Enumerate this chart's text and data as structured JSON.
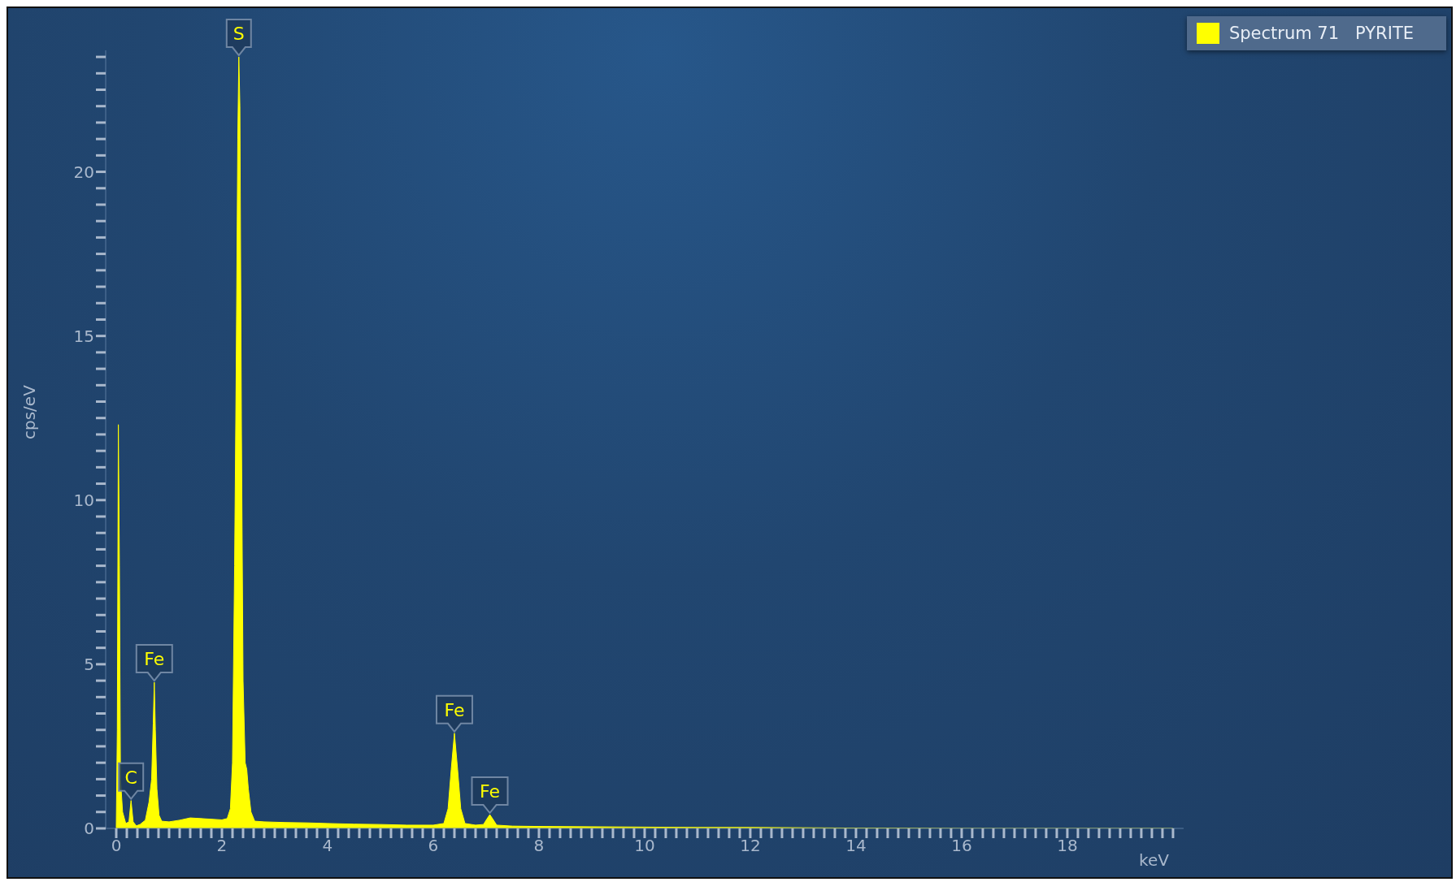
{
  "chart_data": {
    "type": "area",
    "xlabel": "keV",
    "ylabel": "cps/eV",
    "legend": "top right",
    "grid": false,
    "marker": "none",
    "xlim": [
      -0.2,
      20.2
    ],
    "ylim": [
      0,
      23.7
    ],
    "xticks": [
      0,
      {
        "value": 0.2,
        "label": null
      },
      {
        "value": 0.4,
        "label": null
      },
      {
        "value": 0.6,
        "label": null
      },
      {
        "value": 0.8,
        "label": null
      },
      {
        "value": 1,
        "label": null
      },
      {
        "value": 1.2,
        "label": null
      },
      {
        "value": 1.4,
        "label": null
      },
      {
        "value": 1.6,
        "label": null
      },
      {
        "value": 1.8,
        "label": null
      },
      2,
      {
        "value": 2.2,
        "label": null
      },
      {
        "value": 2.4,
        "label": null
      },
      {
        "value": 2.6,
        "label": null
      },
      {
        "value": 2.8,
        "label": null
      },
      {
        "value": 3,
        "label": null
      },
      {
        "value": 3.2,
        "label": null
      },
      {
        "value": 3.4,
        "label": null
      },
      {
        "value": 3.6,
        "label": null
      },
      {
        "value": 3.8,
        "label": null
      },
      4,
      {
        "value": 4.2,
        "label": null
      },
      {
        "value": 4.4,
        "label": null
      },
      {
        "value": 4.6,
        "label": null
      },
      {
        "value": 4.8,
        "label": null
      },
      {
        "value": 5,
        "label": null
      },
      {
        "value": 5.2,
        "label": null
      },
      {
        "value": 5.4,
        "label": null
      },
      {
        "value": 5.6,
        "label": null
      },
      {
        "value": 5.8,
        "label": null
      },
      6,
      {
        "value": 6.2,
        "label": null
      },
      {
        "value": 6.4,
        "label": null
      },
      {
        "value": 6.6,
        "label": null
      },
      {
        "value": 6.8,
        "label": null
      },
      {
        "value": 7,
        "label": null
      },
      {
        "value": 7.2,
        "label": null
      },
      {
        "value": 7.4,
        "label": null
      },
      {
        "value": 7.6,
        "label": null
      },
      {
        "value": 7.8,
        "label": null
      },
      8,
      {
        "value": 8.2,
        "label": null
      },
      {
        "value": 8.4,
        "label": null
      },
      {
        "value": 8.6,
        "label": null
      },
      {
        "value": 8.8,
        "label": null
      },
      {
        "value": 9,
        "label": null
      },
      {
        "value": 9.2,
        "label": null
      },
      {
        "value": 9.4,
        "label": null
      },
      {
        "value": 9.6,
        "label": null
      },
      {
        "value": 9.8,
        "label": null
      },
      10,
      {
        "value": 10.2,
        "label": null
      },
      {
        "value": 10.4,
        "label": null
      },
      {
        "value": 10.6,
        "label": null
      },
      {
        "value": 10.8,
        "label": null
      },
      {
        "value": 11,
        "label": null
      },
      {
        "value": 11.2,
        "label": null
      },
      {
        "value": 11.4,
        "label": null
      },
      {
        "value": 11.6,
        "label": null
      },
      {
        "value": 11.8,
        "label": null
      },
      12,
      {
        "value": 12.2,
        "label": null
      },
      {
        "value": 12.4,
        "label": null
      },
      {
        "value": 12.6,
        "label": null
      },
      {
        "value": 12.8,
        "label": null
      },
      {
        "value": 13,
        "label": null
      },
      {
        "value": 13.2,
        "label": null
      },
      {
        "value": 13.4,
        "label": null
      },
      {
        "value": 13.6,
        "label": null
      },
      {
        "value": 13.8,
        "label": null
      },
      14,
      {
        "value": 14.2,
        "label": null
      },
      {
        "value": 14.4,
        "label": null
      },
      {
        "value": 14.6,
        "label": null
      },
      {
        "value": 14.8,
        "label": null
      },
      {
        "value": 15,
        "label": null
      },
      {
        "value": 15.2,
        "label": null
      },
      {
        "value": 15.4,
        "label": null
      },
      {
        "value": 15.6,
        "label": null
      },
      {
        "value": 15.8,
        "label": null
      },
      16,
      {
        "value": 16.2,
        "label": null
      },
      {
        "value": 16.4,
        "label": null
      },
      {
        "value": 16.6,
        "label": null
      },
      {
        "value": 16.8,
        "label": null
      },
      {
        "value": 17,
        "label": null
      },
      {
        "value": 17.2,
        "label": null
      },
      {
        "value": 17.4,
        "label": null
      },
      {
        "value": 17.6,
        "label": null
      },
      {
        "value": 17.8,
        "label": null
      },
      18,
      {
        "value": 18.2,
        "label": null
      },
      {
        "value": 18.4,
        "label": null
      },
      {
        "value": 18.6,
        "label": null
      },
      {
        "value": 18.8,
        "label": null
      },
      {
        "value": 19,
        "label": null
      },
      {
        "value": 19.2,
        "label": null
      },
      {
        "value": 19.4,
        "label": null
      },
      {
        "value": 19.6,
        "label": null
      },
      {
        "value": 19.8,
        "label": null
      },
      {
        "value": 20,
        "label": null
      }
    ],
    "yticks": [
      0,
      {
        "value": 0.5,
        "label": null
      },
      {
        "value": 1,
        "label": null
      },
      {
        "value": 1.5,
        "label": null
      },
      {
        "value": 2,
        "label": null
      },
      {
        "value": 2.5,
        "label": null
      },
      {
        "value": 3,
        "label": null
      },
      {
        "value": 3.5,
        "label": null
      },
      {
        "value": 4,
        "label": null
      },
      {
        "value": 4.5,
        "label": null
      },
      5,
      {
        "value": 5.5,
        "label": null
      },
      {
        "value": 6,
        "label": null
      },
      {
        "value": 6.5,
        "label": null
      },
      {
        "value": 7,
        "label": null
      },
      {
        "value": 7.5,
        "label": null
      },
      {
        "value": 8,
        "label": null
      },
      {
        "value": 8.5,
        "label": null
      },
      {
        "value": 9,
        "label": null
      },
      {
        "value": 9.5,
        "label": null
      },
      10,
      {
        "value": 10.5,
        "label": null
      },
      {
        "value": 11,
        "label": null
      },
      {
        "value": 11.5,
        "label": null
      },
      {
        "value": 12,
        "label": null
      },
      {
        "value": 12.5,
        "label": null
      },
      {
        "value": 13,
        "label": null
      },
      {
        "value": 13.5,
        "label": null
      },
      {
        "value": 14,
        "label": null
      },
      {
        "value": 14.5,
        "label": null
      },
      15,
      {
        "value": 15.5,
        "label": null
      },
      {
        "value": 16,
        "label": null
      },
      {
        "value": 16.5,
        "label": null
      },
      {
        "value": 17,
        "label": null
      },
      {
        "value": 17.5,
        "label": null
      },
      {
        "value": 18,
        "label": null
      },
      {
        "value": 18.5,
        "label": null
      },
      {
        "value": 19,
        "label": null
      },
      {
        "value": 19.5,
        "label": null
      },
      20,
      {
        "value": 20.5,
        "label": null
      },
      {
        "value": 21,
        "label": null
      },
      {
        "value": 21.5,
        "label": null
      },
      {
        "value": 22,
        "label": null
      },
      {
        "value": 22.5,
        "label": null
      },
      {
        "value": 23,
        "label": null
      },
      {
        "value": 23.5,
        "label": null
      }
    ],
    "x": [
      0,
      0.02,
      0.04,
      0.06,
      0.08,
      0.12,
      0.18,
      0.24,
      0.28,
      0.32,
      0.38,
      0.45,
      0.55,
      0.62,
      0.67,
      0.7,
      0.72,
      0.74,
      0.77,
      0.81,
      0.86,
      1,
      1.2,
      1.4,
      1.6,
      1.8,
      2,
      2.1,
      2.16,
      2.2,
      2.24,
      2.27,
      2.3,
      2.32,
      2.34,
      2.37,
      2.4,
      2.44,
      2.47,
      2.5,
      2.55,
      2.62,
      2.8,
      3.2,
      3.6,
      4,
      4.5,
      5,
      5.5,
      6,
      6.2,
      6.28,
      6.34,
      6.4,
      6.46,
      6.52,
      6.6,
      6.8,
      6.95,
      7.02,
      7.07,
      7.12,
      7.2,
      7.5,
      8,
      9,
      10,
      11,
      12,
      13,
      14,
      16,
      20
    ],
    "series": [
      {
        "name": "Spectrum 71   PYRITE",
        "color": "#ffff00",
        "values": [
          0,
          3,
          12.3,
          8,
          1.5,
          0.5,
          0.15,
          0.2,
          0.85,
          0.2,
          0.08,
          0.12,
          0.25,
          0.8,
          1.5,
          3.2,
          4.45,
          3,
          1.2,
          0.4,
          0.22,
          0.2,
          0.25,
          0.32,
          0.3,
          0.28,
          0.26,
          0.3,
          0.6,
          2,
          8,
          14,
          21,
          23.5,
          22,
          12,
          4.5,
          2,
          1.8,
          1.2,
          0.5,
          0.22,
          0.2,
          0.18,
          0.17,
          0.15,
          0.13,
          0.12,
          0.1,
          0.1,
          0.15,
          0.6,
          1.8,
          2.9,
          1.8,
          0.6,
          0.15,
          0.1,
          0.12,
          0.3,
          0.42,
          0.3,
          0.1,
          0.07,
          0.06,
          0.05,
          0.04,
          0.03,
          0.03,
          0.02,
          0.01,
          0,
          0
        ]
      }
    ],
    "annotations": [
      {
        "text": "C",
        "x": 0.28,
        "y": 0.85
      },
      {
        "text": "Fe",
        "x": 0.72,
        "y": 4.45
      },
      {
        "text": "S",
        "x": 2.32,
        "y": 23.5
      },
      {
        "text": "Fe",
        "x": 6.4,
        "y": 2.9
      },
      {
        "text": "Fe",
        "x": 7.07,
        "y": 0.42
      }
    ]
  }
}
